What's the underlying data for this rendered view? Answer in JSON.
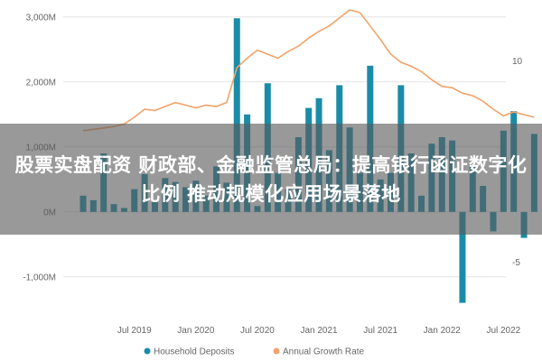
{
  "overlay": {
    "title": "股票实盘配资 财政部、金融监管总局：提高银行函证数字化比例 推动规模化应用场景落地"
  },
  "colors": {
    "bar": "#1a8ca8",
    "line": "#f2a36a",
    "grid": "#e3e3e3",
    "text": "#666666",
    "overlay": "#5a5a5a"
  },
  "chart_data": {
    "type": "bar",
    "left_axis": {
      "ticks": [
        -1000,
        0,
        1000,
        2000,
        3000
      ],
      "tick_labels": [
        "-1,000M",
        "0M",
        "1,000M",
        "2,000M",
        "3,000M"
      ],
      "range": [
        -1600,
        3150
      ]
    },
    "right_axis": {
      "ticks": [
        -5,
        0,
        5,
        10
      ],
      "tick_labels": [
        "-5",
        "0",
        "5",
        "10"
      ],
      "range": [
        -9,
        14
      ]
    },
    "x_tick_labels": [
      "Jul 2019",
      "Jan 2020",
      "Jul 2020",
      "Jan 2021",
      "Jul 2021",
      "Jan 2022",
      "Jul 2022"
    ],
    "months": [
      "2019-02",
      "2019-03",
      "2019-04",
      "2019-05",
      "2019-06",
      "2019-07",
      "2019-08",
      "2019-09",
      "2019-10",
      "2019-11",
      "2019-12",
      "2020-01",
      "2020-02",
      "2020-03",
      "2020-04",
      "2020-05",
      "2020-06",
      "2020-07",
      "2020-08",
      "2020-09",
      "2020-10",
      "2020-11",
      "2020-12",
      "2021-01",
      "2021-02",
      "2021-03",
      "2021-04",
      "2021-05",
      "2021-06",
      "2021-07",
      "2021-08",
      "2021-09",
      "2021-10",
      "2021-11",
      "2021-12",
      "2022-01",
      "2022-02",
      "2022-03",
      "2022-04",
      "2022-05",
      "2022-06",
      "2022-07",
      "2022-08",
      "2022-09",
      "2022-10"
    ],
    "series": [
      {
        "name": "Household Deposits",
        "axis": "left",
        "values": [
          250,
          180,
          900,
          120,
          60,
          350,
          580,
          160,
          520,
          460,
          380,
          480,
          250,
          700,
          450,
          2980,
          1500,
          90,
          1980,
          600,
          350,
          1150,
          1600,
          1750,
          950,
          1950,
          1300,
          600,
          2250,
          500,
          600,
          1950,
          900,
          250,
          1050,
          1150,
          1100,
          -1400,
          700,
          400,
          -300,
          1250,
          1550,
          -400,
          1200
        ]
      },
      {
        "name": "Annual Growth Rate",
        "axis": "right",
        "values": [
          4.8,
          4.9,
          5.0,
          5.1,
          5.3,
          5.8,
          6.4,
          6.3,
          6.6,
          6.9,
          6.7,
          6.5,
          6.7,
          6.6,
          6.9,
          9.5,
          10.2,
          10.8,
          10.5,
          10.2,
          10.7,
          11.1,
          11.7,
          12.2,
          12.6,
          13.2,
          13.8,
          13.6,
          12.6,
          11.6,
          10.5,
          9.9,
          9.6,
          9.2,
          8.6,
          8.1,
          8.0,
          7.6,
          7.4,
          7.0,
          6.4,
          5.9,
          6.2,
          6.0,
          5.8
        ]
      }
    ],
    "legend_position": "bottom",
    "grid": true
  }
}
